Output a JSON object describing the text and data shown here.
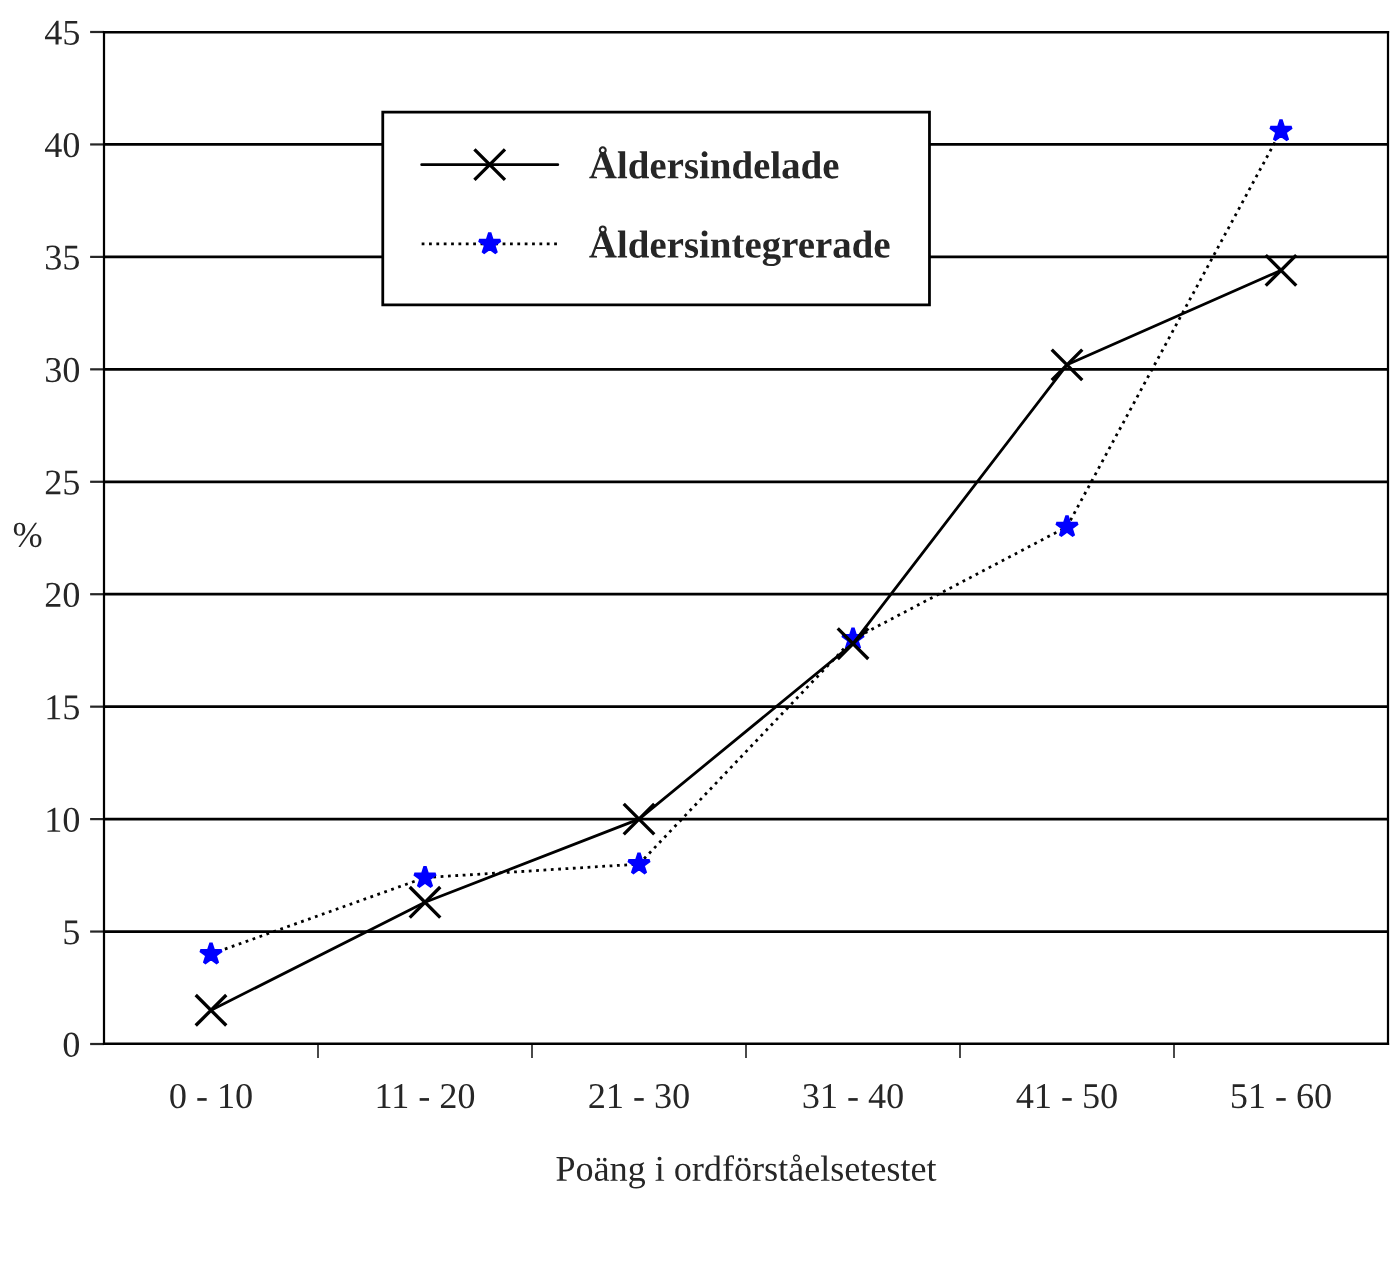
{
  "chart_data": {
    "type": "line",
    "xlabel": "Poäng i ordförståelsetestet",
    "ylabel": "%",
    "categories": [
      "0 - 10",
      "11 - 20",
      "21 - 30",
      "31 - 40",
      "41 - 50",
      "51 - 60"
    ],
    "series": [
      {
        "name": "Åldersindelade",
        "color": "#000000",
        "marker": "cross",
        "line_style": "solid",
        "values": [
          1.5,
          6.3,
          10,
          17.8,
          30.2,
          34.4
        ]
      },
      {
        "name": "Åldersintegrerade",
        "color": "#0000ff",
        "marker": "star",
        "line_style": "dotted",
        "values": [
          4.0,
          7.4,
          8.0,
          18.0,
          23.0,
          40.6
        ]
      }
    ],
    "ylim": [
      0,
      45
    ],
    "yticks": [
      0,
      5,
      10,
      15,
      20,
      25,
      30,
      35,
      40,
      45
    ],
    "grid": "y",
    "legend": "top"
  }
}
